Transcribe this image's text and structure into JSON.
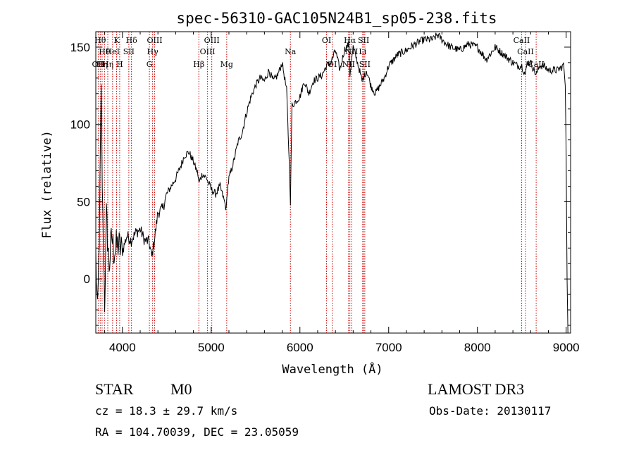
{
  "chart_data": {
    "type": "line",
    "title": "spec-56310-GAC105N24B1_sp05-238.fits",
    "xlabel": "Wavelength (Å)",
    "ylabel": "Flux (relative)",
    "xlim": [
      3700,
      9050
    ],
    "ylim": [
      -35,
      160
    ],
    "xticks": [
      4000,
      5000,
      6000,
      7000,
      8000,
      9000
    ],
    "yticks": [
      0,
      50,
      100,
      150
    ],
    "series": [
      {
        "name": "spectrum",
        "x": [
          3700,
          3720,
          3740,
          3760,
          3780,
          3800,
          3820,
          3850,
          3880,
          3900,
          3950,
          4000,
          4050,
          4100,
          4150,
          4200,
          4250,
          4300,
          4330,
          4360,
          4400,
          4450,
          4500,
          4550,
          4600,
          4650,
          4700,
          4750,
          4800,
          4850,
          4861,
          4900,
          4950,
          5000,
          5050,
          5100,
          5150,
          5170,
          5183,
          5200,
          5250,
          5300,
          5350,
          5400,
          5450,
          5500,
          5550,
          5600,
          5650,
          5700,
          5750,
          5800,
          5850,
          5880,
          5893,
          5910,
          5950,
          6000,
          6050,
          6100,
          6150,
          6200,
          6250,
          6300,
          6350,
          6400,
          6450,
          6500,
          6550,
          6563,
          6600,
          6650,
          6700,
          6750,
          6800,
          6850,
          6900,
          6950,
          7000,
          7100,
          7200,
          7300,
          7400,
          7500,
          7550,
          7600,
          7650,
          7700,
          7800,
          7900,
          8000,
          8100,
          8200,
          8300,
          8400,
          8450,
          8500,
          8542,
          8560,
          8600,
          8662,
          8700,
          8750,
          8800,
          8850,
          8900,
          8950,
          8970,
          8990,
          9000,
          9010,
          9020
        ],
        "y": [
          15,
          -25,
          28,
          118,
          35,
          -15,
          40,
          8,
          28,
          18,
          22,
          18,
          28,
          25,
          30,
          32,
          25,
          24,
          14,
          25,
          43,
          45,
          55,
          60,
          65,
          72,
          80,
          82,
          76,
          68,
          62,
          68,
          65,
          58,
          55,
          60,
          50,
          45,
          58,
          65,
          75,
          88,
          95,
          108,
          118,
          125,
          130,
          128,
          135,
          128,
          132,
          140,
          122,
          75,
          50,
          112,
          115,
          118,
          128,
          120,
          128,
          130,
          132,
          138,
          140,
          148,
          135,
          148,
          152,
          132,
          150,
          140,
          128,
          135,
          125,
          120,
          125,
          130,
          138,
          145,
          148,
          152,
          155,
          155,
          158,
          155,
          152,
          150,
          148,
          152,
          150,
          142,
          150,
          145,
          140,
          138,
          138,
          132,
          140,
          140,
          132,
          138,
          138,
          135,
          135,
          135,
          137,
          140,
          125,
          80,
          0,
          -35
        ]
      }
    ],
    "line_markers": [
      {
        "wavelength": 3727,
        "name": "OII",
        "row": 3
      },
      {
        "wavelength": 3750,
        "name": "Hθ",
        "row": 1
      },
      {
        "wavelength": 3771,
        "name": "Hη",
        "row": 3
      },
      {
        "wavelength": 3798,
        "name": "Hθ",
        "row": 2
      },
      {
        "wavelength": 3835,
        "name": "Hη",
        "row": 3
      },
      {
        "wavelength": 3889,
        "name": "HeI",
        "row": 2
      },
      {
        "wavelength": 3934,
        "name": "K",
        "row": 1
      },
      {
        "wavelength": 3969,
        "name": "H",
        "row": 3
      },
      {
        "wavelength": 4072,
        "name": "SII",
        "row": 2
      },
      {
        "wavelength": 4102,
        "name": "Hδ",
        "row": 1
      },
      {
        "wavelength": 4304,
        "name": "G",
        "row": 3
      },
      {
        "wavelength": 4340,
        "name": "Hγ",
        "row": 2
      },
      {
        "wavelength": 4363,
        "name": "OIII",
        "row": 1
      },
      {
        "wavelength": 4861,
        "name": "Hβ",
        "row": 3
      },
      {
        "wavelength": 4959,
        "name": "OIII",
        "row": 2
      },
      {
        "wavelength": 5007,
        "name": "OIII",
        "row": 1
      },
      {
        "wavelength": 5175,
        "name": "Mg",
        "row": 3
      },
      {
        "wavelength": 5893,
        "name": "Na",
        "row": 2
      },
      {
        "wavelength": 6300,
        "name": "OI",
        "row": 1
      },
      {
        "wavelength": 6364,
        "name": "OI",
        "row": 3
      },
      {
        "wavelength": 6548,
        "name": "NII",
        "row": 3
      },
      {
        "wavelength": 6563,
        "name": "Hα",
        "row": 1
      },
      {
        "wavelength": 6583,
        "name": "NII",
        "row": 2
      },
      {
        "wavelength": 6707,
        "name": "Li",
        "row": 2
      },
      {
        "wavelength": 6717,
        "name": "SII",
        "row": 1
      },
      {
        "wavelength": 6731,
        "name": "SII",
        "row": 3
      },
      {
        "wavelength": 8498,
        "name": "CaII",
        "row": 1
      },
      {
        "wavelength": 8542,
        "name": "CaII",
        "row": 2
      },
      {
        "wavelength": 8662,
        "name": "CaII",
        "row": 3
      }
    ]
  },
  "info": {
    "class_label": "STAR",
    "subclass": "M0",
    "survey": "LAMOST DR3",
    "cz": "cz = 18.3 ± 29.7 km/s",
    "obs_date": "Obs-Date: 20130117",
    "coords": "RA = 104.70039, DEC =  23.05059"
  },
  "colors": {
    "spectrum": "#000000",
    "marker_line": "#cc0000"
  }
}
